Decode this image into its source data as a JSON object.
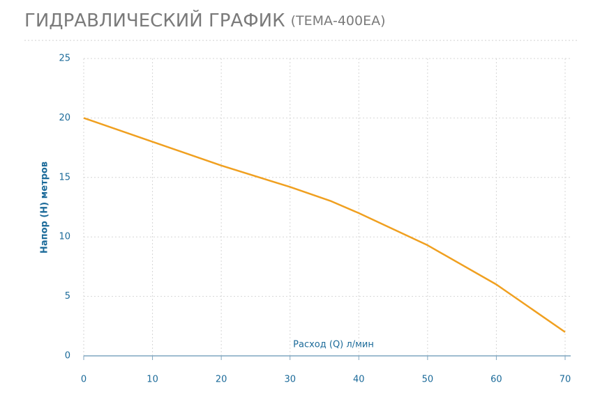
{
  "chart_data": {
    "type": "line",
    "title": "ГИДРАВЛИЧЕСКИЙ ГРАФИК",
    "subtitle": "(ТЕМА-400ЕА)",
    "x_label": "Расход (Q) л/мин",
    "y_label": "Напор (Н) метров",
    "x": [
      0,
      10,
      20,
      30,
      36,
      40,
      50,
      60,
      70
    ],
    "series": [
      {
        "name": "ТЕМА-400ЕА",
        "color": "#f0a020",
        "values": [
          20,
          18,
          16,
          14.2,
          13,
          12,
          9.3,
          6,
          2
        ]
      }
    ],
    "xlim": [
      0,
      70
    ],
    "xticks": [
      0,
      10,
      20,
      30,
      40,
      50,
      60,
      70
    ],
    "ylim": [
      0,
      25
    ],
    "yticks": [
      0,
      5,
      10,
      15,
      20,
      25
    ],
    "grid": true
  }
}
